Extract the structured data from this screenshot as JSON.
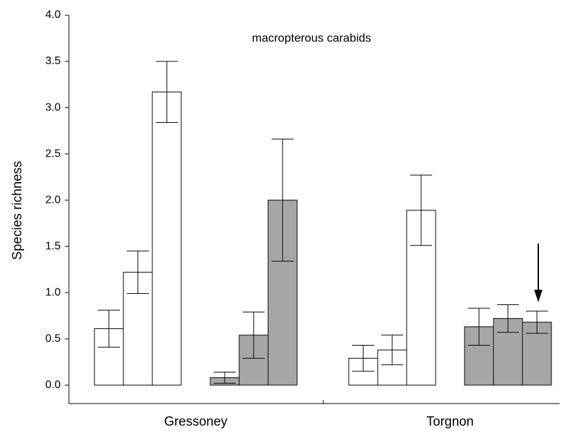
{
  "chart_data": {
    "type": "bar",
    "title": "macropterous carabids",
    "y_label": "Species richness",
    "categories": [
      "Gressoney",
      "Torgnon"
    ],
    "series": [
      {
        "color": "#ffffff",
        "values": [
          0.61,
          0.29
        ],
        "errors": [
          0.2,
          0.14
        ]
      },
      {
        "color": "#ffffff",
        "values": [
          1.22,
          0.38
        ],
        "errors": [
          0.23,
          0.16
        ]
      },
      {
        "color": "#ffffff",
        "values": [
          3.17,
          1.89
        ],
        "errors": [
          0.33,
          0.38
        ]
      },
      {
        "color": "#a6a6a6",
        "values": [
          0.08,
          0.63
        ],
        "errors": [
          0.06,
          0.2
        ]
      },
      {
        "color": "#a6a6a6",
        "values": [
          0.54,
          0.72
        ],
        "errors": [
          0.25,
          0.15
        ]
      },
      {
        "color": "#a6a6a6",
        "values": [
          2.0,
          0.68
        ],
        "errors": [
          0.66,
          0.12
        ]
      }
    ],
    "ylim": [
      -0.2,
      4.0
    ],
    "yticks": [
      {
        "value": 0,
        "label": "0.0"
      },
      {
        "value": 0.5,
        "label": "0.5"
      },
      {
        "value": 1,
        "label": "1.0"
      },
      {
        "value": 1.5,
        "label": "1.5"
      },
      {
        "value": 2,
        "label": "2.0"
      },
      {
        "value": 2.5,
        "label": "2.5"
      },
      {
        "value": 3,
        "label": "3.0"
      },
      {
        "value": 3.5,
        "label": "3.5"
      },
      {
        "value": 4,
        "label": "4.0"
      }
    ],
    "grid": false
  }
}
